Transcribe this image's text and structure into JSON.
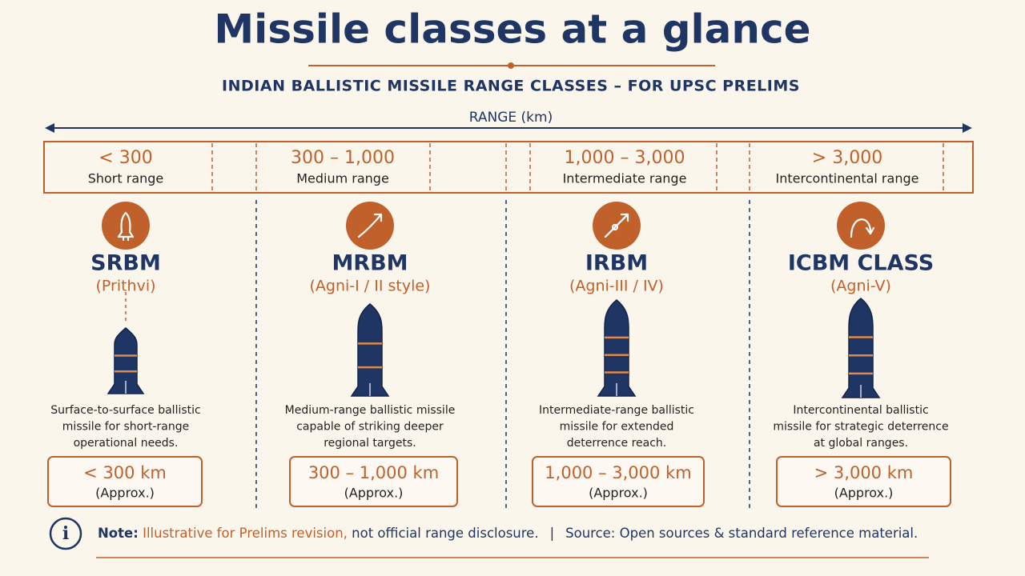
{
  "title": "Missile classes at a glance",
  "subtitle": "INDIAN BALLISTIC MISSILE RANGE CLASSES – FOR UPSC PRELIMS",
  "axis_label": "RANGE (km)",
  "classes": [
    {
      "range": "< 300",
      "range_name": "Short range",
      "name": "SRBM",
      "example": "(Prithvi)",
      "description": [
        "Surface-to-surface ballistic",
        "missile for short-range",
        "operational needs."
      ],
      "range_box": "< 300 km",
      "approx": "(Approx.)"
    },
    {
      "range": "300 – 1,000",
      "range_name": "Medium range",
      "name": "MRBM",
      "example": "(Agni-I / II style)",
      "description": [
        "Medium-range ballistic missile",
        "capable of striking deeper",
        "regional targets."
      ],
      "range_box": "300 – 1,000 km",
      "approx": "(Approx.)"
    },
    {
      "range": "1,000 – 3,000",
      "range_name": "Intermediate range",
      "name": "IRBM",
      "example": "(Agni-III / IV)",
      "description": [
        "Intermediate-range ballistic",
        "missile for extended",
        "deterrence reach."
      ],
      "range_box": "1,000 – 3,000 km",
      "approx": "(Approx.)"
    },
    {
      "range": "> 3,000",
      "range_name": "Intercontinental range",
      "name": "ICBM CLASS",
      "example": "(Agni-V)",
      "description": [
        "Intercontinental ballistic",
        "missile for strategic deterrence",
        "at global ranges."
      ],
      "range_box": "> 3,000 km",
      "approx": "(Approx.)"
    }
  ],
  "note": {
    "label": "Note:",
    "highlight": "Illustrative for Prelims revision,",
    "text": "not official range disclosure.",
    "separator": "|",
    "source": "Source: Open sources & standard reference material."
  }
}
